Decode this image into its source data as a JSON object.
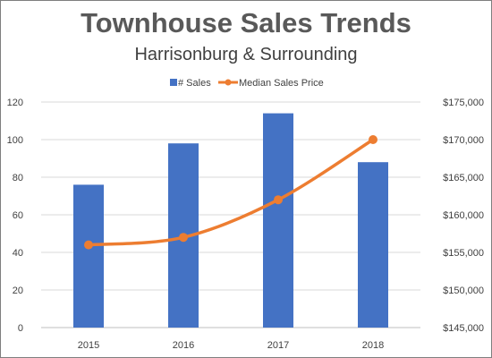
{
  "chart_data": {
    "type": "bar",
    "title": "Townhouse Sales Trends",
    "subtitle": "Harrisonburg & Surrounding",
    "categories": [
      "2015",
      "2016",
      "2017",
      "2018"
    ],
    "series": [
      {
        "name": "# Sales",
        "type": "bar",
        "axis": "left",
        "values": [
          76,
          98,
          114,
          88
        ],
        "color": "#4472c4"
      },
      {
        "name": "Median Sales Price",
        "type": "line",
        "axis": "right",
        "values": [
          156000,
          157000,
          162000,
          170000
        ],
        "color": "#ed7d31",
        "smooth": true,
        "markers": true
      }
    ],
    "y_left": {
      "min": 0,
      "max": 120,
      "step": 20,
      "tick_labels": [
        "0",
        "20",
        "40",
        "60",
        "80",
        "100",
        "120"
      ]
    },
    "y_right": {
      "min": 145000,
      "max": 175000,
      "step": 5000,
      "tick_labels": [
        "$145,000",
        "$150,000",
        "$155,000",
        "$160,000",
        "$165,000",
        "$170,000",
        "$175,000"
      ]
    },
    "grid": true,
    "legend_position": "top"
  }
}
